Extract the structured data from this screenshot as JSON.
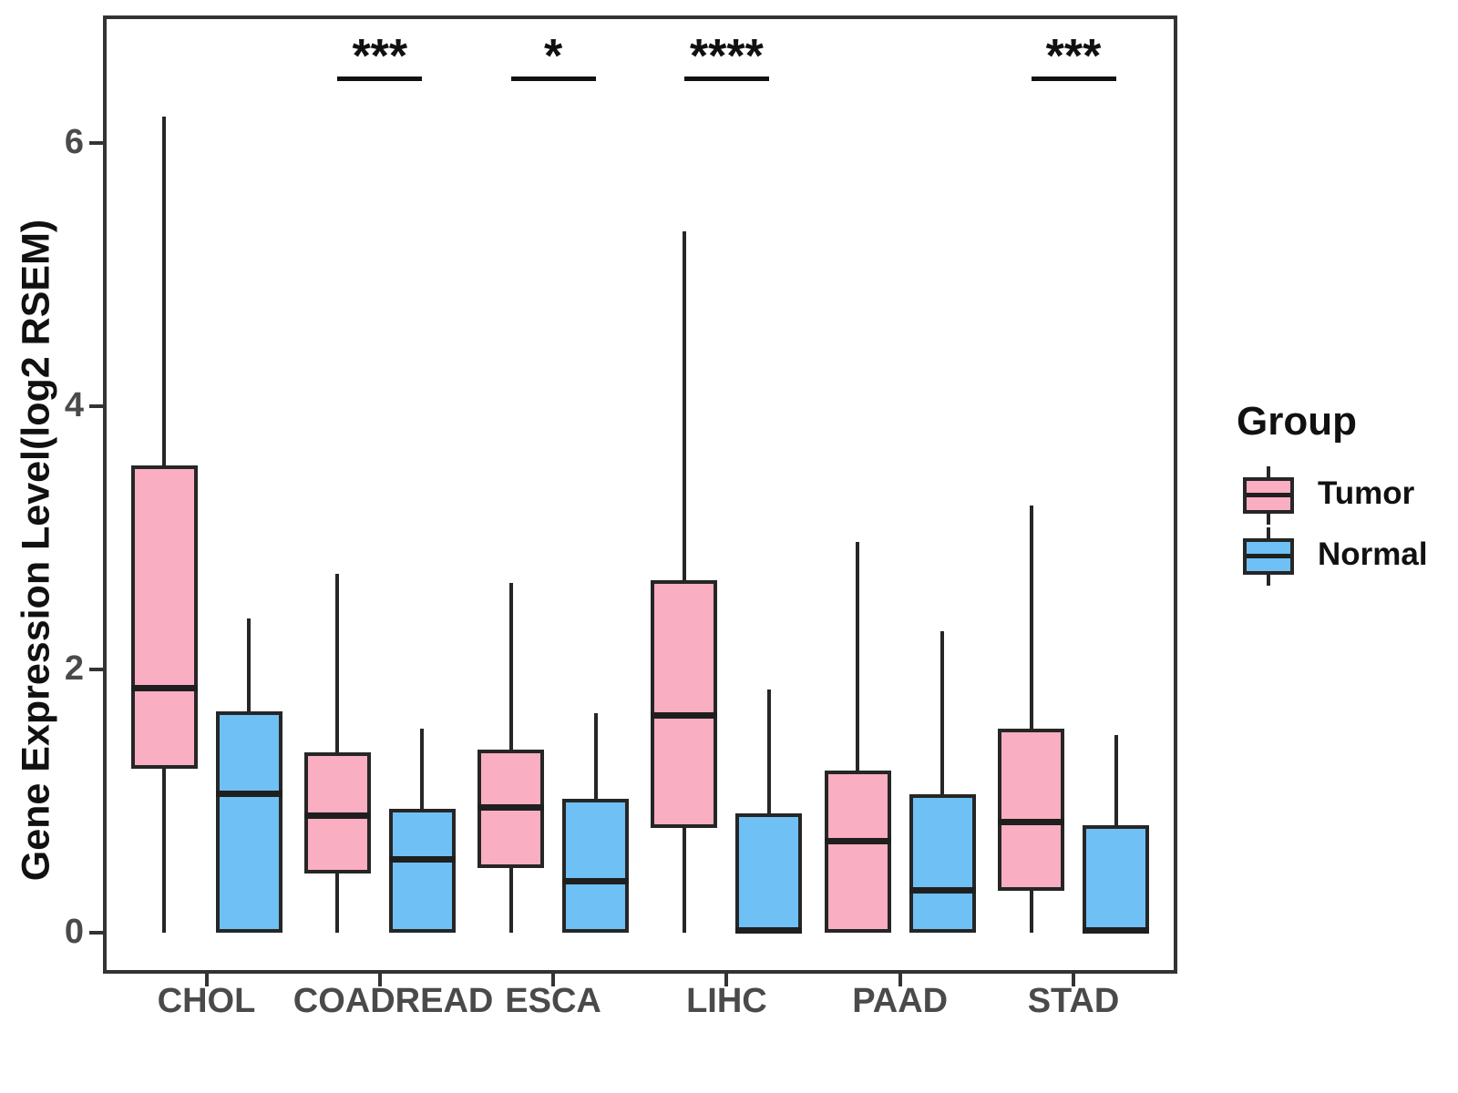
{
  "chart_data": {
    "type": "boxplot",
    "title": "",
    "ylabel": "Gene Expression Level(log2 RSEM)",
    "xlabel": "",
    "ylim": [
      -0.31,
      6.97
    ],
    "yticks": [
      0,
      2,
      4,
      6
    ],
    "grid": false,
    "legend_position": "right",
    "categories": [
      "CHOL",
      "COADREAD",
      "ESCA",
      "LIHC",
      "PAAD",
      "STAD"
    ],
    "legend": {
      "title": "Group",
      "entries": [
        {
          "label": "Tumor",
          "color": "#FAAEC1"
        },
        {
          "label": "Normal",
          "color": "#6FC0F5"
        }
      ]
    },
    "series": [
      {
        "name": "Tumor",
        "color": "#FAAEC1",
        "boxes": [
          {
            "category": "CHOL",
            "whisker_low": 0,
            "q1": 1.25,
            "median": 1.86,
            "q3": 3.55,
            "whisker_high": 6.2
          },
          {
            "category": "COADREAD",
            "whisker_low": 0,
            "q1": 0.45,
            "median": 0.89,
            "q3": 1.37,
            "whisker_high": 2.73
          },
          {
            "category": "ESCA",
            "whisker_low": 0,
            "q1": 0.49,
            "median": 0.95,
            "q3": 1.39,
            "whisker_high": 2.66
          },
          {
            "category": "LIHC",
            "whisker_low": 0,
            "q1": 0.8,
            "median": 1.65,
            "q3": 2.68,
            "whisker_high": 5.33
          },
          {
            "category": "PAAD",
            "whisker_low": 0,
            "q1": 0.0,
            "median": 0.7,
            "q3": 1.23,
            "whisker_high": 2.97
          },
          {
            "category": "STAD",
            "whisker_low": 0,
            "q1": 0.32,
            "median": 0.84,
            "q3": 1.55,
            "whisker_high": 3.25
          }
        ]
      },
      {
        "name": "Normal",
        "color": "#6FC0F5",
        "boxes": [
          {
            "category": "CHOL",
            "whisker_low": 0,
            "q1": 0.0,
            "median": 1.06,
            "q3": 1.68,
            "whisker_high": 2.39
          },
          {
            "category": "COADREAD",
            "whisker_low": 0,
            "q1": 0.0,
            "median": 0.56,
            "q3": 0.94,
            "whisker_high": 1.55
          },
          {
            "category": "ESCA",
            "whisker_low": 0,
            "q1": 0.0,
            "median": 0.39,
            "q3": 1.02,
            "whisker_high": 1.67
          },
          {
            "category": "LIHC",
            "whisker_low": 0,
            "q1": 0.0,
            "median": 0.02,
            "q3": 0.91,
            "whisker_high": 1.85
          },
          {
            "category": "PAAD",
            "whisker_low": 0,
            "q1": 0.0,
            "median": 0.32,
            "q3": 1.05,
            "whisker_high": 2.29
          },
          {
            "category": "STAD",
            "whisker_low": 0,
            "q1": 0.0,
            "median": 0.02,
            "q3": 0.82,
            "whisker_high": 1.5
          }
        ]
      }
    ],
    "significance": [
      {
        "category": "COADREAD",
        "label": "***"
      },
      {
        "category": "ESCA",
        "label": "*"
      },
      {
        "category": "LIHC",
        "label": "****"
      },
      {
        "category": "STAD",
        "label": "***"
      }
    ],
    "colors": {
      "box_border": "#262626",
      "median": "#1f1f1f",
      "panel_border": "#333333",
      "tick_label": "#4a4a4a",
      "text": "#111111"
    }
  }
}
